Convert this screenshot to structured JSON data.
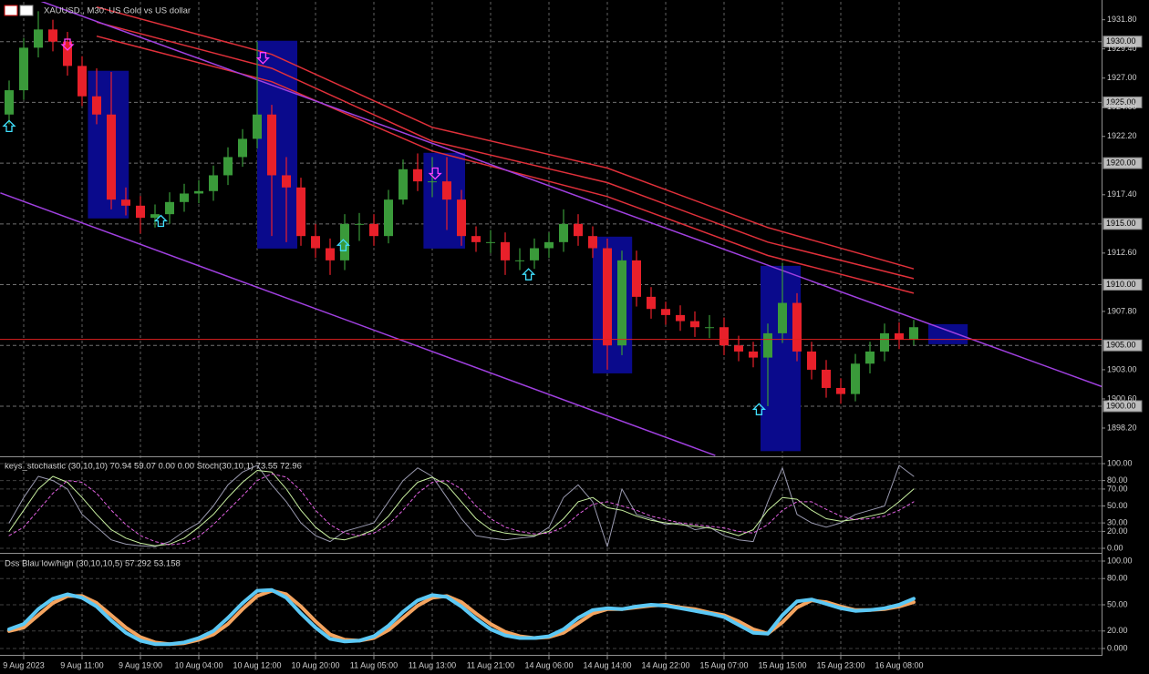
{
  "chart_data": [
    {
      "type": "candlestick",
      "title": "XAUUSD., M30:  US Gold vs US dollar",
      "categories": [
        null,
        "9 Aug 2023",
        null,
        null,
        null,
        "9 Aug 11:00",
        null,
        null,
        null,
        "9 Aug 19:00",
        null,
        null,
        null,
        "10 Aug 04:00",
        null,
        null,
        null,
        "10 Aug 12:00",
        null,
        null,
        null,
        "10 Aug 20:00",
        null,
        null,
        null,
        "11 Aug 05:00",
        null,
        null,
        null,
        "11 Aug 13:00",
        null,
        null,
        null,
        "11 Aug 21:00",
        null,
        null,
        null,
        "14 Aug 06:00",
        null,
        null,
        null,
        "14 Aug 14:00",
        null,
        null,
        null,
        "14 Aug 22:00",
        null,
        null,
        null,
        "15 Aug 07:00",
        null,
        null,
        null,
        "15 Aug 15:00",
        null,
        null,
        null,
        "15 Aug 23:00",
        null,
        null,
        null,
        "16 Aug 08:00",
        null
      ],
      "open": [
        1924,
        1926,
        1929.5,
        1931,
        1930,
        1928,
        1925.5,
        1924,
        1917,
        1916.5,
        1915.5,
        1915.8,
        1916.8,
        1917.5,
        1917.7,
        1919,
        1920.5,
        1922,
        1924,
        1919,
        1918,
        1914,
        1913,
        1912,
        1915,
        1915,
        1914,
        1917,
        1919.5,
        1918.5,
        1918.5,
        1917,
        1914,
        1913.5,
        1913.5,
        1912,
        1912,
        1913,
        1913.5,
        1915,
        1914,
        1913,
        1905,
        1912,
        1909,
        1908,
        1907.5,
        1907,
        1906.5,
        1906.5,
        1905,
        1904.5,
        1904,
        1906,
        1908.5,
        1904.5,
        1903,
        1901.5,
        1901,
        1903.5,
        1904.5,
        1906,
        1905.5
      ],
      "high": [
        1926.8,
        1930.3,
        1932.5,
        1931.8,
        1930.8,
        1928.8,
        1927.8,
        1927.5,
        1918,
        1917.3,
        1916.6,
        1917.6,
        1918.3,
        1918.6,
        1919.8,
        1921.3,
        1922.8,
        1930,
        1924.8,
        1920.5,
        1918.8,
        1915,
        1913.8,
        1915.8,
        1915.9,
        1915.8,
        1917.8,
        1920.3,
        1920.8,
        1920.5,
        1920.5,
        1917.8,
        1914.8,
        1914.5,
        1914.3,
        1913,
        1913.8,
        1914.3,
        1916.2,
        1915.8,
        1914.8,
        1913.8,
        1912.8,
        1912.8,
        1909.8,
        1908.6,
        1908.3,
        1907.8,
        1907.5,
        1907.3,
        1905.8,
        1905.3,
        1906.8,
        1911.8,
        1909.3,
        1905.3,
        1903.8,
        1902.3,
        1904.3,
        1905.3,
        1906.8,
        1906.9,
        1907.1
      ],
      "low": [
        1923.2,
        1925.2,
        1928.7,
        1929.2,
        1927.2,
        1924.7,
        1923.2,
        1916.2,
        1915.7,
        1914.2,
        1914.7,
        1915,
        1916,
        1916.7,
        1916.9,
        1918.2,
        1919.7,
        1921.2,
        1914,
        1913.5,
        1913.2,
        1912.2,
        1910.8,
        1911.2,
        1913.6,
        1913.2,
        1913.4,
        1916.6,
        1917.7,
        1917.2,
        1914.5,
        1913.2,
        1912.7,
        1912.6,
        1910.8,
        1911.2,
        1911.3,
        1912.2,
        1912.7,
        1913.2,
        1912.2,
        1903,
        1904.2,
        1908.2,
        1907.2,
        1906.7,
        1906.2,
        1905.7,
        1905.6,
        1904.2,
        1903.7,
        1903.2,
        1900,
        1905.2,
        1903.7,
        1902.2,
        1900.7,
        1900.2,
        1900.4,
        1902.7,
        1903.7,
        1904.7,
        1905
      ],
      "close": [
        1926,
        1929.5,
        1931,
        1930,
        1928,
        1925.5,
        1924,
        1917,
        1916.5,
        1915.5,
        1915.8,
        1916.8,
        1917.5,
        1917.7,
        1919,
        1920.5,
        1922,
        1924,
        1919,
        1918,
        1914,
        1913,
        1912,
        1915,
        1915,
        1914,
        1917,
        1919.5,
        1918.5,
        1918.5,
        1917,
        1914,
        1913.5,
        1913.5,
        1912,
        1912,
        1913,
        1913.5,
        1915,
        1914,
        1913,
        1905,
        1912,
        1909,
        1908,
        1907.5,
        1907,
        1906.5,
        1906.5,
        1905,
        1904.5,
        1904,
        1906,
        1908.5,
        1904.5,
        1903,
        1901.5,
        1901,
        1903.5,
        1904.5,
        1906,
        1905.5,
        1906.5
      ],
      "up_color": "#3a9a3a",
      "down_color": "#e8202a",
      "ylim": [
        1895.95,
        1933.2
      ],
      "yticks": [
        {
          "value": 1931.8,
          "label": "1931.80"
        },
        {
          "value": 1929.4,
          "label": "1929.40"
        },
        {
          "value": 1927,
          "label": "1927.00"
        },
        {
          "value": 1924.6,
          "label": "1924.60"
        },
        {
          "value": 1922.2,
          "label": "1922.20"
        },
        {
          "value": 1917.4,
          "label": "1917.40"
        },
        {
          "value": 1912.6,
          "label": "1912.60"
        },
        {
          "value": 1907.8,
          "label": "1907.80"
        },
        {
          "value": 1903,
          "label": "1903.00"
        },
        {
          "value": 1900.6,
          "label": "1900.60"
        },
        {
          "value": 1898.2,
          "label": "1898.20"
        }
      ],
      "level_ticks": [
        {
          "value": 1930,
          "label": "1930.00"
        },
        {
          "value": 1925,
          "label": "1925.00"
        },
        {
          "value": 1920,
          "label": "1920.00"
        },
        {
          "value": 1915,
          "label": "1915.00"
        },
        {
          "value": 1910,
          "label": "1910.00"
        },
        {
          "value": 1905,
          "label": "1905.00"
        },
        {
          "value": 1900,
          "label": "1900.00"
        }
      ],
      "grid": true,
      "current_price": 1905.5,
      "current_price_color": "#e02020",
      "moving_averages": [
        {
          "color": "#e0303a",
          "x": [
            6,
            18,
            29,
            41,
            52,
            62
          ],
          "values": [
            1932.85,
            1928.95,
            1922.95,
            1919.6,
            1914.7,
            1911.3
          ]
        },
        {
          "color": "#e0303a",
          "x": [
            6,
            18,
            29,
            41,
            52,
            62
          ],
          "values": [
            1931.6,
            1927.8,
            1921.8,
            1918.4,
            1913.5,
            1910.5
          ]
        },
        {
          "color": "#e0303a",
          "x": [
            6,
            18,
            29,
            41,
            52,
            62
          ],
          "values": [
            1930.45,
            1926.7,
            1921,
            1917.25,
            1912.4,
            1909.3
          ]
        }
      ],
      "trendlines": [
        {
          "color": "#a040e0",
          "x": [
            1.9,
            75
          ],
          "values": [
            1933.45,
            1901.57
          ]
        },
        {
          "color": "#a040e0",
          "x": [
            -0.6,
            48.4
          ],
          "values": [
            1917.55,
            1895.94
          ]
        }
      ],
      "zone_color": "#0a0a8c",
      "zones": [
        {
          "x": [
            5.4,
            8.2
          ],
          "values": [
            1927.6,
            1915.45
          ]
        },
        {
          "x": [
            17,
            19.75
          ],
          "values": [
            1930.07,
            1912.97
          ]
        },
        {
          "x": [
            28.4,
            31.25
          ],
          "values": [
            1920.85,
            1912.97
          ]
        },
        {
          "x": [
            40,
            42.7
          ],
          "values": [
            1913.95,
            1902.7
          ]
        },
        {
          "x": [
            51.5,
            54.25
          ],
          "values": [
            1911.55,
            1896.3
          ]
        },
        {
          "x": [
            63,
            65.7
          ],
          "values": [
            1906.75,
            1905.1
          ]
        }
      ],
      "signals_up": {
        "color": "#40e0ff",
        "x": [
          0,
          10.4,
          22.9,
          35.6,
          51.4
        ],
        "values": [
          1923.5,
          1915.7,
          1913.7,
          1911.3,
          1900.2
        ]
      },
      "signals_down": {
        "color": "#ff40ff",
        "x": [
          4,
          17.4,
          29.2
        ],
        "values": [
          1929.3,
          1928.2,
          1918.7
        ]
      }
    },
    {
      "type": "line",
      "title": "keys_stochastic (30,10,10) 70.94 59.07 0.00 0.00 Stoch(30,10,1) 73.55 72.96",
      "ylim": [
        -4.3,
        106.5
      ],
      "yticks": [
        {
          "value": 100,
          "label": "100.00"
        },
        {
          "value": 80,
          "label": "80.00"
        },
        {
          "value": 70,
          "label": "70.00"
        },
        {
          "value": 50,
          "label": "50.00"
        },
        {
          "value": 30,
          "label": "30.00"
        },
        {
          "value": 20,
          "label": "20.00"
        },
        {
          "value": 0,
          "label": "0.00"
        }
      ],
      "line_width": 1,
      "series": [
        {
          "color": "#9a9ab0",
          "values": [
            30,
            60,
            85,
            80,
            70,
            40,
            25,
            10,
            5,
            3,
            2,
            8,
            20,
            30,
            50,
            75,
            90,
            98,
            75,
            55,
            30,
            15,
            8,
            20,
            25,
            30,
            55,
            80,
            95,
            85,
            60,
            35,
            15,
            12,
            10,
            12,
            14,
            25,
            60,
            75,
            55,
            2,
            70,
            40,
            35,
            28,
            30,
            22,
            25,
            15,
            10,
            8,
            55,
            95,
            40,
            30,
            25,
            30,
            40,
            45,
            50,
            98,
            85
          ]
        },
        {
          "color": "#c8f0a0",
          "values": [
            20,
            45,
            70,
            85,
            78,
            60,
            40,
            22,
            12,
            6,
            3,
            5,
            12,
            25,
            40,
            60,
            78,
            92,
            90,
            70,
            45,
            25,
            12,
            10,
            15,
            22,
            38,
            60,
            78,
            84,
            75,
            55,
            35,
            22,
            18,
            16,
            15,
            20,
            35,
            55,
            60,
            48,
            45,
            38,
            33,
            30,
            28,
            26,
            24,
            20,
            15,
            22,
            45,
            60,
            58,
            45,
            35,
            32,
            34,
            38,
            42,
            55,
            70
          ]
        },
        {
          "color": "#e060e0",
          "dash": true,
          "values": [
            15,
            25,
            45,
            65,
            80,
            78,
            65,
            45,
            28,
            15,
            8,
            4,
            6,
            14,
            28,
            45,
            62,
            80,
            88,
            84,
            68,
            45,
            28,
            18,
            15,
            18,
            28,
            45,
            65,
            78,
            80,
            70,
            50,
            35,
            25,
            20,
            17,
            18,
            25,
            40,
            52,
            55,
            50,
            45,
            38,
            34,
            30,
            28,
            26,
            24,
            20,
            18,
            28,
            45,
            55,
            55,
            46,
            38,
            34,
            35,
            38,
            45,
            55
          ]
        }
      ]
    },
    {
      "type": "line",
      "title": "Dss Blau low/high (30,10,10,5) 57.292 53.158",
      "ylim": [
        -6.25,
        107.3
      ],
      "yticks": [
        {
          "value": 100,
          "label": "100.00"
        },
        {
          "value": 80,
          "label": "80.00"
        },
        {
          "value": 50,
          "label": "50.00"
        },
        {
          "value": 20,
          "label": "20.00"
        },
        {
          "value": 0,
          "label": "0.000"
        }
      ],
      "line_width": 4,
      "series": [
        {
          "color": "#f4a460",
          "values": [
            20,
            24,
            38,
            52,
            60,
            60,
            52,
            38,
            24,
            13,
            7,
            5,
            6,
            10,
            16,
            28,
            45,
            60,
            66,
            62,
            48,
            31,
            16,
            10,
            9,
            12,
            21,
            35,
            49,
            58,
            60,
            53,
            40,
            28,
            19,
            14,
            12,
            13,
            18,
            29,
            40,
            45,
            45,
            47,
            49,
            50,
            47,
            45,
            41,
            38,
            31,
            22,
            17,
            30,
            47,
            55,
            53,
            48,
            44,
            44,
            45,
            48,
            53
          ]
        },
        {
          "color": "#5bc8f5",
          "values": [
            22,
            28,
            45,
            57,
            62,
            58,
            48,
            32,
            18,
            9,
            5,
            5,
            7,
            12,
            20,
            35,
            52,
            66,
            67,
            58,
            40,
            24,
            11,
            8,
            9,
            14,
            26,
            42,
            55,
            61,
            59,
            48,
            34,
            22,
            15,
            12,
            12,
            14,
            22,
            35,
            44,
            46,
            45,
            48,
            50,
            49,
            46,
            43,
            40,
            36,
            27,
            18,
            17,
            38,
            54,
            56,
            51,
            46,
            43,
            44,
            46,
            50,
            57
          ]
        }
      ]
    }
  ]
}
